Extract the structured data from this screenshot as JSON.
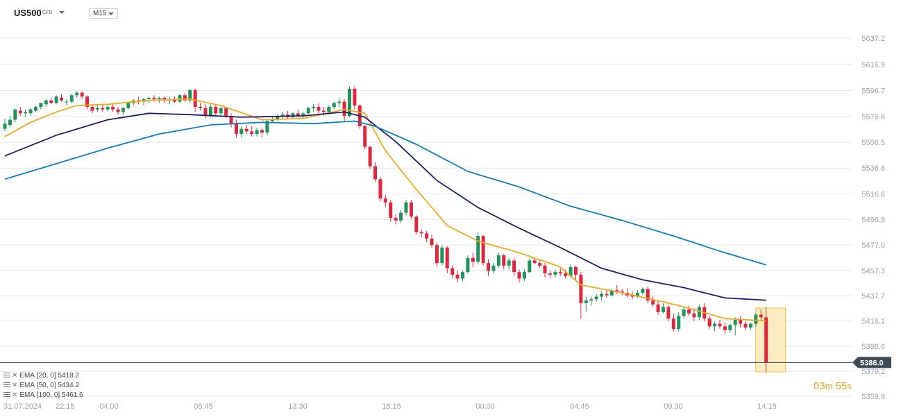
{
  "header": {
    "symbol": "US500",
    "instrument_type": "CFD",
    "timeframe": "M15"
  },
  "legend": [
    {
      "name": "EMA",
      "params": "[20,  0]",
      "value": "5418.2",
      "color": "#f2a81d"
    },
    {
      "name": "EMA",
      "params": "[50,  0]",
      "value": "5434.2",
      "color": "#1b1f6b"
    },
    {
      "name": "EMA",
      "params": "[100,  0]",
      "value": "5461.6",
      "color": "#0a7ec2"
    }
  ],
  "countdown": {
    "minutes": "03",
    "minutes_unit": "m",
    "seconds": "55",
    "seconds_unit": "s"
  },
  "colors": {
    "up": "#22935a",
    "down": "#e0263c",
    "grid": "#e6e9ec",
    "price_line": "#3d4b58",
    "current_highlight": "#fbedc0"
  },
  "chart_data": {
    "type": "candlestick",
    "current_price": "5386.0",
    "ylim": [
      5350,
      5650
    ],
    "y_ticks": [
      "5637.2",
      "5616.9",
      "5596.7",
      "5576.6",
      "5556.5",
      "5536.6",
      "5516.6",
      "5496.8",
      "5477.0",
      "5457.3",
      "5437.7",
      "5418.1",
      "5398.6",
      "5379.2",
      "5359.9"
    ],
    "x_ticks": [
      "31.07.2024",
      "22:15",
      "04:00",
      "08:45",
      "13:30",
      "18:15",
      "00:00",
      "04:45",
      "09:30",
      "14:15"
    ],
    "candles": [
      [
        5567,
        5575,
        5565,
        5571
      ],
      [
        5570,
        5577,
        5568,
        5574
      ],
      [
        5574,
        5583,
        5572,
        5582
      ],
      [
        5581,
        5584,
        5577,
        5579
      ],
      [
        5579,
        5582,
        5576,
        5580
      ],
      [
        5579,
        5583,
        5577,
        5582
      ],
      [
        5581,
        5585,
        5580,
        5584
      ],
      [
        5584,
        5587,
        5582,
        5587
      ],
      [
        5586,
        5590,
        5584,
        5589
      ],
      [
        5589,
        5591,
        5586,
        5587
      ],
      [
        5587,
        5593,
        5586,
        5592
      ],
      [
        5591,
        5594,
        5588,
        5589
      ],
      [
        5588,
        5590,
        5585,
        5588
      ],
      [
        5588,
        5594,
        5587,
        5593
      ],
      [
        5593,
        5596,
        5591,
        5595
      ],
      [
        5595,
        5596,
        5590,
        5592
      ],
      [
        5592,
        5593,
        5582,
        5584
      ],
      [
        5584,
        5586,
        5579,
        5581
      ],
      [
        5582,
        5586,
        5580,
        5583
      ],
      [
        5583,
        5586,
        5580,
        5582
      ],
      [
        5582,
        5586,
        5580,
        5584
      ],
      [
        5584,
        5587,
        5580,
        5582
      ],
      [
        5582,
        5584,
        5578,
        5580
      ],
      [
        5580,
        5584,
        5578,
        5583
      ],
      [
        5583,
        5588,
        5582,
        5587
      ],
      [
        5587,
        5590,
        5585,
        5589
      ],
      [
        5589,
        5592,
        5586,
        5588
      ],
      [
        5588,
        5591,
        5585,
        5590
      ],
      [
        5590,
        5592,
        5587,
        5591
      ],
      [
        5591,
        5593,
        5588,
        5590
      ],
      [
        5590,
        5592,
        5587,
        5591
      ],
      [
        5591,
        5592,
        5587,
        5589
      ],
      [
        5589,
        5592,
        5586,
        5590
      ],
      [
        5590,
        5592,
        5587,
        5588
      ],
      [
        5588,
        5594,
        5587,
        5593
      ],
      [
        5593,
        5595,
        5588,
        5589
      ],
      [
        5589,
        5598,
        5587,
        5597
      ],
      [
        5597,
        5598,
        5580,
        5584
      ],
      [
        5584,
        5587,
        5581,
        5583
      ],
      [
        5583,
        5586,
        5575,
        5577
      ],
      [
        5577,
        5586,
        5576,
        5584
      ],
      [
        5584,
        5586,
        5577,
        5579
      ],
      [
        5579,
        5584,
        5576,
        5583
      ],
      [
        5583,
        5584,
        5575,
        5577
      ],
      [
        5577,
        5579,
        5568,
        5571
      ],
      [
        5571,
        5574,
        5560,
        5563
      ],
      [
        5563,
        5569,
        5560,
        5567
      ],
      [
        5567,
        5570,
        5563,
        5565
      ],
      [
        5565,
        5569,
        5561,
        5563
      ],
      [
        5563,
        5568,
        5561,
        5566
      ],
      [
        5566,
        5568,
        5560,
        5564
      ],
      [
        5564,
        5574,
        5562,
        5573
      ],
      [
        5573,
        5576,
        5572,
        5574
      ],
      [
        5574,
        5578,
        5573,
        5577
      ],
      [
        5577,
        5580,
        5575,
        5578
      ],
      [
        5578,
        5581,
        5575,
        5576
      ],
      [
        5576,
        5580,
        5575,
        5579
      ],
      [
        5579,
        5582,
        5576,
        5577
      ],
      [
        5577,
        5580,
        5575,
        5579
      ],
      [
        5579,
        5584,
        5578,
        5583
      ],
      [
        5583,
        5586,
        5580,
        5584
      ],
      [
        5584,
        5587,
        5579,
        5581
      ],
      [
        5581,
        5584,
        5577,
        5580
      ],
      [
        5580,
        5585,
        5578,
        5584
      ],
      [
        5584,
        5588,
        5582,
        5587
      ],
      [
        5587,
        5591,
        5584,
        5588
      ],
      [
        5588,
        5590,
        5573,
        5577
      ],
      [
        5577,
        5600,
        5576,
        5598
      ],
      [
        5598,
        5600,
        5582,
        5585
      ],
      [
        5585,
        5586,
        5567,
        5569
      ],
      [
        5569,
        5570,
        5551,
        5553
      ],
      [
        5553,
        5554,
        5536,
        5538
      ],
      [
        5538,
        5541,
        5526,
        5528
      ],
      [
        5528,
        5530,
        5511,
        5513
      ],
      [
        5513,
        5516,
        5506,
        5510
      ],
      [
        5510,
        5512,
        5495,
        5498
      ],
      [
        5498,
        5501,
        5493,
        5496
      ],
      [
        5496,
        5504,
        5494,
        5502
      ],
      [
        5502,
        5512,
        5500,
        5510
      ],
      [
        5510,
        5512,
        5497,
        5499
      ],
      [
        5499,
        5500,
        5485,
        5487
      ],
      [
        5487,
        5489,
        5483,
        5486
      ],
      [
        5486,
        5488,
        5479,
        5482
      ],
      [
        5482,
        5485,
        5475,
        5477
      ],
      [
        5477,
        5479,
        5460,
        5463
      ],
      [
        5463,
        5477,
        5461,
        5475
      ],
      [
        5475,
        5476,
        5455,
        5459
      ],
      [
        5459,
        5461,
        5451,
        5454
      ],
      [
        5454,
        5457,
        5448,
        5451
      ],
      [
        5451,
        5457,
        5449,
        5456
      ],
      [
        5456,
        5469,
        5455,
        5467
      ],
      [
        5467,
        5471,
        5460,
        5464
      ],
      [
        5464,
        5487,
        5462,
        5484
      ],
      [
        5484,
        5485,
        5461,
        5463
      ],
      [
        5463,
        5466,
        5453,
        5457
      ],
      [
        5457,
        5463,
        5455,
        5461
      ],
      [
        5461,
        5471,
        5459,
        5469
      ],
      [
        5469,
        5470,
        5458,
        5461
      ],
      [
        5461,
        5467,
        5458,
        5465
      ],
      [
        5465,
        5467,
        5453,
        5456
      ],
      [
        5456,
        5458,
        5448,
        5451
      ],
      [
        5451,
        5458,
        5449,
        5456
      ],
      [
        5456,
        5466,
        5455,
        5465
      ],
      [
        5465,
        5467,
        5462,
        5463
      ],
      [
        5463,
        5466,
        5459,
        5461
      ],
      [
        5461,
        5463,
        5452,
        5455
      ],
      [
        5455,
        5457,
        5451,
        5454
      ],
      [
        5454,
        5458,
        5452,
        5456
      ],
      [
        5456,
        5459,
        5453,
        5455
      ],
      [
        5455,
        5458,
        5451,
        5453
      ],
      [
        5453,
        5462,
        5452,
        5460
      ],
      [
        5460,
        5461,
        5449,
        5454
      ],
      [
        5454,
        5456,
        5420,
        5432
      ],
      [
        5432,
        5437,
        5425,
        5434
      ],
      [
        5434,
        5437,
        5430,
        5435
      ],
      [
        5435,
        5439,
        5433,
        5437
      ],
      [
        5437,
        5441,
        5434,
        5439
      ],
      [
        5439,
        5442,
        5436,
        5438
      ],
      [
        5438,
        5443,
        5437,
        5442
      ],
      [
        5442,
        5446,
        5439,
        5441
      ],
      [
        5441,
        5443,
        5438,
        5440
      ],
      [
        5440,
        5443,
        5436,
        5438
      ],
      [
        5438,
        5441,
        5435,
        5437
      ],
      [
        5437,
        5442,
        5436,
        5440
      ],
      [
        5440,
        5444,
        5438,
        5443
      ],
      [
        5443,
        5445,
        5432,
        5434
      ],
      [
        5434,
        5437,
        5429,
        5431
      ],
      [
        5431,
        5434,
        5423,
        5425
      ],
      [
        5425,
        5432,
        5424,
        5429
      ],
      [
        5429,
        5431,
        5418,
        5420
      ],
      [
        5420,
        5424,
        5410,
        5412
      ],
      [
        5412,
        5425,
        5410,
        5422
      ],
      [
        5422,
        5429,
        5420,
        5427
      ],
      [
        5427,
        5430,
        5422,
        5424
      ],
      [
        5424,
        5428,
        5418,
        5421
      ],
      [
        5421,
        5431,
        5419,
        5429
      ],
      [
        5429,
        5432,
        5418,
        5420
      ],
      [
        5420,
        5422,
        5412,
        5414
      ],
      [
        5414,
        5418,
        5410,
        5416
      ],
      [
        5416,
        5419,
        5412,
        5414
      ],
      [
        5414,
        5417,
        5408,
        5411
      ],
      [
        5411,
        5416,
        5409,
        5415
      ],
      [
        5415,
        5421,
        5407,
        5419
      ],
      [
        5419,
        5422,
        5413,
        5416
      ],
      [
        5416,
        5418,
        5411,
        5413
      ],
      [
        5413,
        5417,
        5411,
        5416
      ],
      [
        5416,
        5424,
        5414,
        5423
      ],
      [
        5423,
        5427,
        5418,
        5421
      ],
      [
        5421,
        5429,
        5378,
        5386
      ]
    ],
    "ema20": [
      [
        0,
        5561
      ],
      [
        5,
        5572
      ],
      [
        10,
        5580
      ],
      [
        14,
        5585
      ],
      [
        20,
        5586
      ],
      [
        28,
        5589
      ],
      [
        36,
        5590
      ],
      [
        42,
        5585
      ],
      [
        50,
        5574
      ],
      [
        58,
        5575
      ],
      [
        66,
        5582
      ],
      [
        70,
        5579
      ],
      [
        74,
        5550
      ],
      [
        80,
        5520
      ],
      [
        86,
        5492
      ],
      [
        92,
        5480
      ],
      [
        100,
        5471
      ],
      [
        108,
        5460
      ],
      [
        112,
        5446
      ],
      [
        120,
        5440
      ],
      [
        128,
        5433
      ],
      [
        134,
        5427
      ],
      [
        140,
        5420
      ],
      [
        148,
        5418.2
      ]
    ],
    "ema50": [
      [
        0,
        5546
      ],
      [
        10,
        5562
      ],
      [
        20,
        5574
      ],
      [
        28,
        5579
      ],
      [
        36,
        5578
      ],
      [
        46,
        5576
      ],
      [
        58,
        5577
      ],
      [
        66,
        5580
      ],
      [
        70,
        5576
      ],
      [
        76,
        5557
      ],
      [
        84,
        5527
      ],
      [
        92,
        5506
      ],
      [
        100,
        5490
      ],
      [
        108,
        5475
      ],
      [
        116,
        5459
      ],
      [
        124,
        5450
      ],
      [
        132,
        5444
      ],
      [
        140,
        5436
      ],
      [
        148,
        5434.2
      ]
    ],
    "ema100": [
      [
        0,
        5528
      ],
      [
        10,
        5540
      ],
      [
        20,
        5552
      ],
      [
        30,
        5563
      ],
      [
        40,
        5570
      ],
      [
        50,
        5572
      ],
      [
        60,
        5571
      ],
      [
        68,
        5573
      ],
      [
        72,
        5569
      ],
      [
        80,
        5555
      ],
      [
        90,
        5534
      ],
      [
        100,
        5522
      ],
      [
        110,
        5507
      ],
      [
        120,
        5496
      ],
      [
        130,
        5484
      ],
      [
        140,
        5471
      ],
      [
        148,
        5461.6
      ]
    ]
  }
}
